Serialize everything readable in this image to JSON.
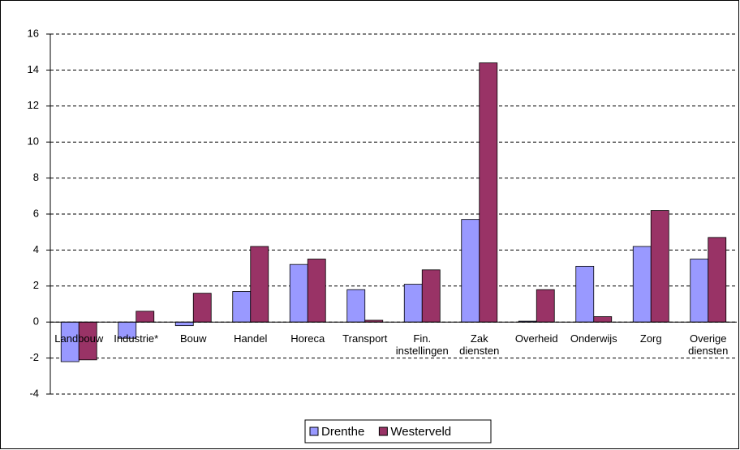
{
  "chart_data": {
    "type": "bar",
    "categories": [
      "Landbouw",
      "Industrie*",
      "Bouw",
      "Handel",
      "Horeca",
      "Transport",
      "Fin.\ninstellingen",
      "Zak\ndiensten",
      "Overheid",
      "Onderwijs",
      "Zorg",
      "Overige\ndiensten"
    ],
    "series": [
      {
        "name": "Drenthe",
        "color": "#9999ff",
        "values": [
          -2.2,
          -0.9,
          -0.2,
          1.7,
          3.2,
          1.8,
          2.1,
          5.7,
          0.05,
          3.1,
          4.2,
          3.5
        ]
      },
      {
        "name": "Westerveld",
        "color": "#993366",
        "values": [
          -2.1,
          0.6,
          1.6,
          4.2,
          3.5,
          0.1,
          2.9,
          14.4,
          1.8,
          0.3,
          6.2,
          4.7
        ]
      }
    ],
    "ylim": [
      -4,
      16
    ],
    "yticks": [
      -4,
      -2,
      0,
      2,
      4,
      6,
      8,
      10,
      12,
      14,
      16
    ],
    "grid": true,
    "legend": "bottom"
  }
}
